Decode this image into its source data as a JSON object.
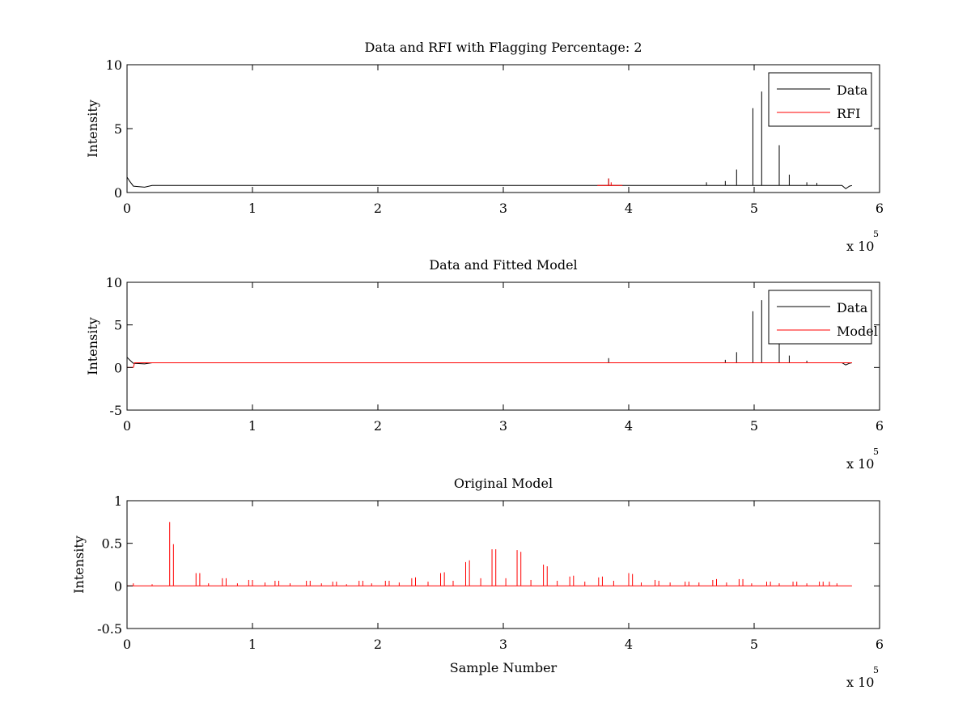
{
  "figure": {
    "x_multiplier": "x 10",
    "x_multiplier_exp": "5",
    "colors": {
      "data": "#000000",
      "rfi": "#ff0000",
      "model": "#ff0000"
    }
  },
  "chart_data": [
    {
      "type": "line",
      "title": "Data and RFI with Flagging Percentage: 2",
      "xlabel": "",
      "ylabel": "Intensity",
      "xlim": [
        0,
        6
      ],
      "ylim": [
        0,
        10
      ],
      "xticks": [
        "0",
        "1",
        "2",
        "3",
        "4",
        "5",
        "6"
      ],
      "yticks": [
        "0",
        "5",
        "10"
      ],
      "x_scale_note": "x 10^5",
      "legend": {
        "placement": "top-right",
        "entries": [
          "Data",
          "RFI"
        ]
      },
      "series": [
        {
          "name": "Data",
          "color": "#000000",
          "baseline": 0.55,
          "x_start": 0,
          "x_end": 5.78,
          "start_bump": [
            [
              0.0,
              1.2
            ],
            [
              0.02,
              0.9
            ],
            [
              0.05,
              0.5
            ],
            [
              0.14,
              0.42
            ],
            [
              0.2,
              0.55
            ]
          ],
          "end_bump": [
            [
              5.7,
              0.55
            ],
            [
              5.73,
              0.3
            ],
            [
              5.76,
              0.5
            ],
            [
              5.78,
              0.55
            ]
          ],
          "spikes": [
            [
              4.86,
              1.8
            ],
            [
              4.99,
              6.6
            ],
            [
              5.06,
              7.9
            ],
            [
              5.2,
              3.7
            ],
            [
              5.28,
              1.4
            ],
            [
              4.77,
              0.9
            ],
            [
              5.42,
              0.8
            ],
            [
              5.5,
              0.75
            ],
            [
              3.84,
              1.1
            ],
            [
              4.62,
              0.8
            ]
          ]
        },
        {
          "name": "RFI",
          "color": "#ff0000",
          "baseline": 0.55,
          "segment": [
            3.75,
            3.95
          ],
          "spikes": [
            [
              3.84,
              1.1
            ],
            [
              3.86,
              0.8
            ]
          ]
        }
      ]
    },
    {
      "type": "line",
      "title": "Data and Fitted Model",
      "xlabel": "",
      "ylabel": "Intensity",
      "xlim": [
        0,
        6
      ],
      "ylim": [
        -5,
        10
      ],
      "xticks": [
        "0",
        "1",
        "2",
        "3",
        "4",
        "5",
        "6"
      ],
      "yticks": [
        "-5",
        "0",
        "5",
        "10"
      ],
      "x_scale_note": "x 10^5",
      "legend": {
        "placement": "top-right",
        "entries": [
          "Data",
          "Model"
        ]
      },
      "series": [
        {
          "name": "Data",
          "color": "#000000",
          "baseline": 0.55,
          "x_start": 0,
          "x_end": 5.78,
          "start_bump": [
            [
              0.0,
              1.2
            ],
            [
              0.02,
              0.9
            ],
            [
              0.05,
              0.5
            ],
            [
              0.14,
              0.42
            ],
            [
              0.2,
              0.55
            ]
          ],
          "end_bump": [
            [
              5.7,
              0.55
            ],
            [
              5.73,
              0.3
            ],
            [
              5.76,
              0.5
            ],
            [
              5.78,
              0.55
            ]
          ],
          "spikes": [
            [
              4.86,
              1.8
            ],
            [
              4.99,
              6.6
            ],
            [
              5.06,
              7.9
            ],
            [
              5.2,
              3.7
            ],
            [
              5.28,
              1.4
            ],
            [
              4.77,
              0.9
            ],
            [
              5.42,
              0.8
            ],
            [
              3.84,
              1.1
            ]
          ]
        },
        {
          "name": "Model",
          "color": "#ff0000",
          "baseline": 0.55,
          "x_start": 0,
          "x_end": 5.78,
          "start_bump": [
            [
              0.0,
              0.0
            ],
            [
              0.05,
              0.0
            ],
            [
              0.06,
              0.55
            ]
          ]
        }
      ]
    },
    {
      "type": "line",
      "title": "Original Model",
      "xlabel": "Sample Number",
      "ylabel": "Intensity",
      "xlim": [
        0,
        6
      ],
      "ylim": [
        -0.5,
        1
      ],
      "xticks": [
        "0",
        "1",
        "2",
        "3",
        "4",
        "5",
        "6"
      ],
      "yticks": [
        "-0.5",
        "0",
        "0.5",
        "1"
      ],
      "x_scale_note": "x 10^5",
      "series": [
        {
          "name": "",
          "color": "#ff0000",
          "baseline": 0.0,
          "x_start": 0,
          "x_end": 5.78,
          "spikes": [
            [
              0.34,
              0.75
            ],
            [
              0.37,
              0.49
            ],
            [
              0.55,
              0.15
            ],
            [
              0.58,
              0.15
            ],
            [
              0.76,
              0.09
            ],
            [
              0.79,
              0.09
            ],
            [
              0.97,
              0.07
            ],
            [
              1.0,
              0.07
            ],
            [
              1.18,
              0.06
            ],
            [
              1.21,
              0.06
            ],
            [
              1.43,
              0.06
            ],
            [
              1.46,
              0.06
            ],
            [
              1.64,
              0.05
            ],
            [
              1.67,
              0.05
            ],
            [
              1.85,
              0.06
            ],
            [
              1.88,
              0.06
            ],
            [
              2.06,
              0.06
            ],
            [
              2.09,
              0.06
            ],
            [
              2.27,
              0.09
            ],
            [
              2.3,
              0.1
            ],
            [
              2.5,
              0.15
            ],
            [
              2.53,
              0.16
            ],
            [
              2.7,
              0.28
            ],
            [
              2.73,
              0.3
            ],
            [
              2.91,
              0.43
            ],
            [
              2.94,
              0.43
            ],
            [
              3.11,
              0.42
            ],
            [
              3.14,
              0.4
            ],
            [
              3.32,
              0.25
            ],
            [
              3.35,
              0.23
            ],
            [
              3.53,
              0.11
            ],
            [
              3.56,
              0.12
            ],
            [
              3.76,
              0.1
            ],
            [
              3.79,
              0.11
            ],
            [
              4.0,
              0.15
            ],
            [
              4.03,
              0.14
            ],
            [
              4.21,
              0.07
            ],
            [
              4.24,
              0.06
            ],
            [
              4.45,
              0.05
            ],
            [
              4.48,
              0.05
            ],
            [
              4.67,
              0.07
            ],
            [
              4.7,
              0.08
            ],
            [
              4.88,
              0.08
            ],
            [
              4.91,
              0.08
            ],
            [
              5.1,
              0.05
            ],
            [
              5.13,
              0.05
            ],
            [
              5.31,
              0.05
            ],
            [
              5.34,
              0.05
            ],
            [
              5.52,
              0.05
            ],
            [
              5.55,
              0.05
            ],
            [
              5.6,
              0.05
            ],
            [
              0.05,
              0.03
            ],
            [
              0.2,
              0.02
            ],
            [
              0.65,
              0.03
            ],
            [
              0.88,
              0.03
            ],
            [
              1.1,
              0.04
            ],
            [
              1.3,
              0.03
            ],
            [
              1.55,
              0.03
            ],
            [
              1.75,
              0.02
            ],
            [
              1.95,
              0.03
            ],
            [
              2.17,
              0.04
            ],
            [
              2.4,
              0.05
            ],
            [
              2.6,
              0.06
            ],
            [
              2.82,
              0.09
            ],
            [
              3.02,
              0.09
            ],
            [
              3.22,
              0.07
            ],
            [
              3.43,
              0.06
            ],
            [
              3.65,
              0.05
            ],
            [
              3.88,
              0.06
            ],
            [
              4.1,
              0.04
            ],
            [
              4.33,
              0.04
            ],
            [
              4.56,
              0.04
            ],
            [
              4.78,
              0.04
            ],
            [
              4.98,
              0.03
            ],
            [
              5.2,
              0.03
            ],
            [
              5.42,
              0.03
            ],
            [
              5.66,
              0.03
            ]
          ]
        }
      ]
    }
  ]
}
